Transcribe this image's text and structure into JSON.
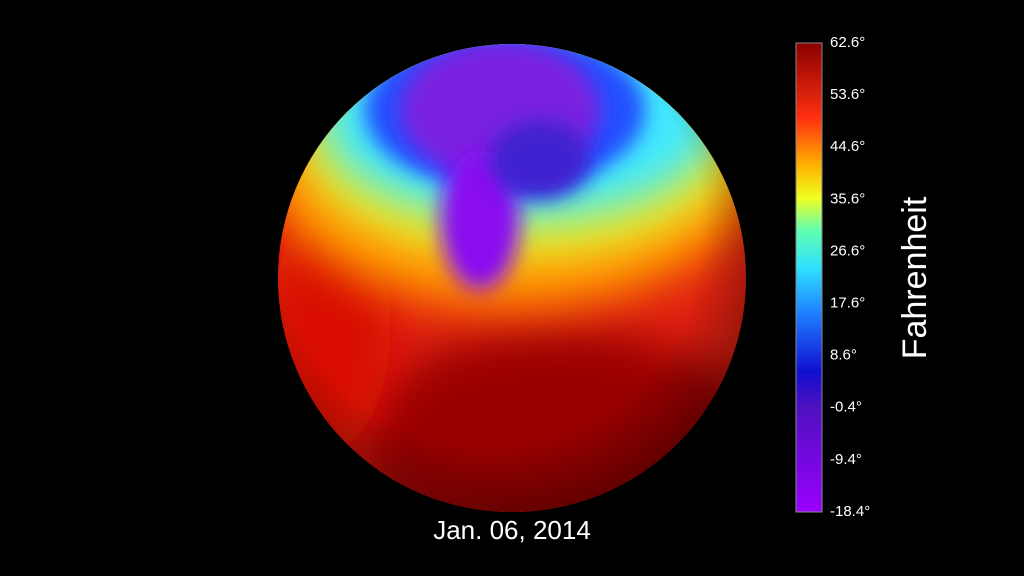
{
  "date": "Jan. 06, 2014",
  "colorbar": {
    "title": "Fahrenheit",
    "ticks": [
      "62.6°",
      "53.6°",
      "44.6°",
      "35.6°",
      "26.6°",
      "17.6°",
      "8.6°",
      "-0.4°",
      "-9.4°",
      "-18.4°"
    ]
  }
}
